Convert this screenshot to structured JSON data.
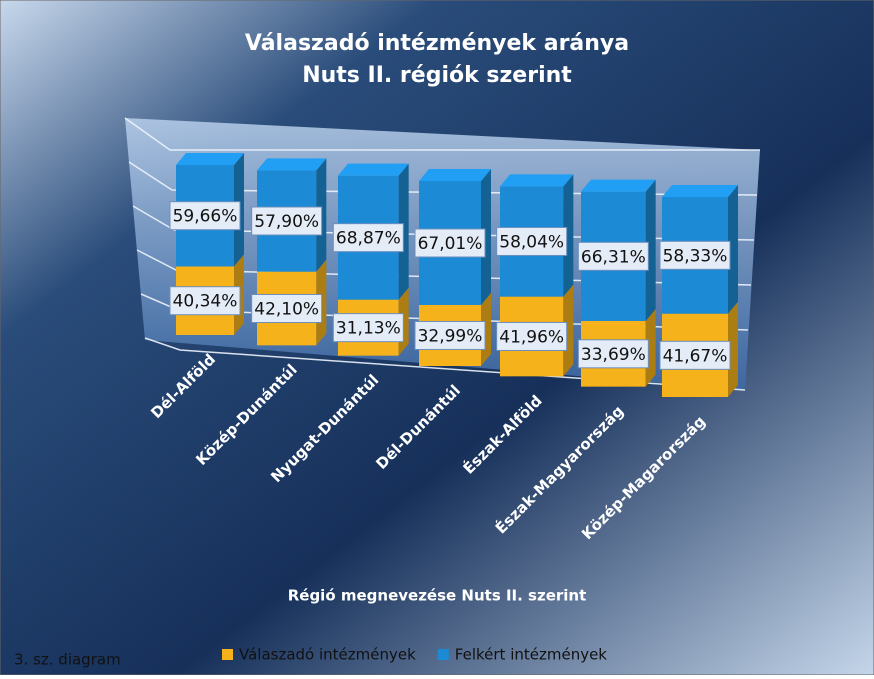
{
  "chart_data": {
    "type": "bar",
    "stacked": true,
    "title": "Válaszadó intézmények aránya",
    "subtitle": "Nuts II. régiók szerint",
    "x_label": "Régió megnevezése Nuts II. szerint",
    "annotation": "3. sz. diagram",
    "categories": [
      "Dél-Alföld",
      "Közép-Dunántúl",
      "Nyugat-Dunántúl",
      "Dél-Dunántúl",
      "Észak-Alföld",
      "Észak-Magyarország",
      "Közép-Magarország"
    ],
    "series": [
      {
        "name": "Válaszadó intézmények",
        "color": "#f5b21a",
        "values": [
          40.34,
          42.1,
          31.13,
          32.99,
          41.96,
          33.69,
          41.67
        ],
        "value_labels": [
          "40,34%",
          "42,10%",
          "31,13%",
          "32,99%",
          "41,96%",
          "33,69%",
          "41,67%"
        ]
      },
      {
        "name": "Felkért intézmények",
        "color": "#1c8ad4",
        "values": [
          59.66,
          57.9,
          68.87,
          67.01,
          58.04,
          66.31,
          58.33
        ],
        "value_labels": [
          "59,66%",
          "57,90%",
          "68,87%",
          "67,01%",
          "58,04%",
          "66,31%",
          "58,33%"
        ]
      }
    ],
    "legend": "bottom"
  }
}
